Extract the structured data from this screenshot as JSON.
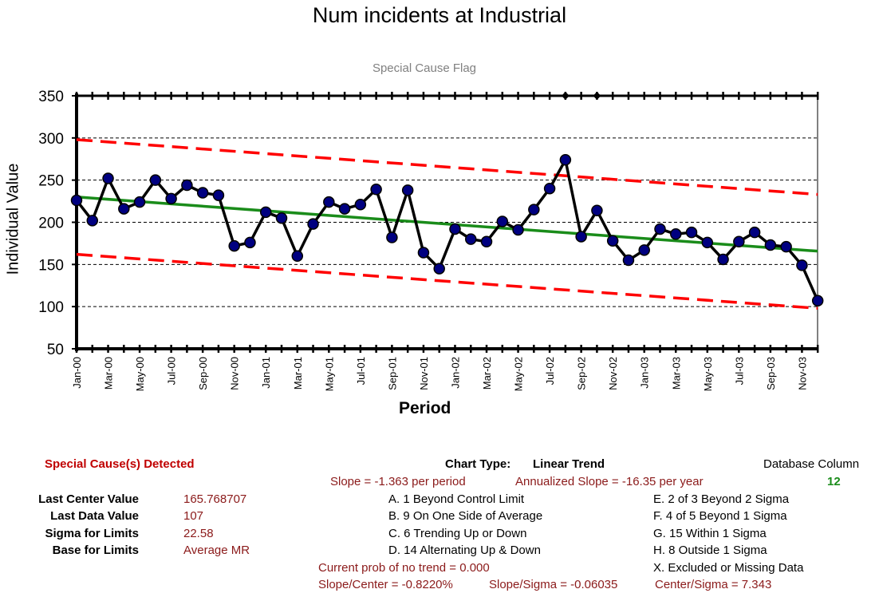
{
  "chart_data": {
    "type": "line",
    "title": "Num incidents at Industrial",
    "subtitle": "Special Cause Flag",
    "xlabel": "Period",
    "ylabel": "Individual Value",
    "ylim": [
      50,
      350
    ],
    "yticks": [
      50,
      100,
      150,
      200,
      250,
      300,
      350
    ],
    "grid": true,
    "x_tick_labels": [
      "Jan-00",
      "Mar-00",
      "May-00",
      "Jul-00",
      "Sep-00",
      "Nov-00",
      "Jan-01",
      "Mar-01",
      "May-01",
      "Jul-01",
      "Sep-01",
      "Nov-01",
      "Jan-02",
      "Mar-02",
      "May-02",
      "Jul-02",
      "Sep-02",
      "Nov-02",
      "Jan-03",
      "Mar-03",
      "May-03",
      "Jul-03",
      "Sep-03",
      "Nov-03"
    ],
    "periods": [
      "Jan-00",
      "Feb-00",
      "Mar-00",
      "Apr-00",
      "May-00",
      "Jun-00",
      "Jul-00",
      "Aug-00",
      "Sep-00",
      "Oct-00",
      "Nov-00",
      "Dec-00",
      "Jan-01",
      "Feb-01",
      "Mar-01",
      "Apr-01",
      "May-01",
      "Jun-01",
      "Jul-01",
      "Aug-01",
      "Sep-01",
      "Oct-01",
      "Nov-01",
      "Dec-01",
      "Jan-02",
      "Feb-02",
      "Mar-02",
      "Apr-02",
      "May-02",
      "Jun-02",
      "Jul-02",
      "Aug-02",
      "Sep-02",
      "Oct-02",
      "Nov-02",
      "Dec-02",
      "Jan-03",
      "Feb-03",
      "Mar-03",
      "Apr-03",
      "May-03",
      "Jun-03",
      "Jul-03",
      "Aug-03",
      "Sep-03",
      "Oct-03",
      "Nov-03",
      "Dec-03"
    ],
    "series": [
      {
        "values": [
          226,
          202,
          252,
          216,
          224,
          250,
          228,
          244,
          235,
          232,
          172,
          176,
          212,
          205,
          160,
          198,
          224,
          216,
          221,
          239,
          182,
          238,
          164,
          145,
          192,
          180,
          177,
          201,
          191,
          215,
          240,
          274,
          183,
          214,
          178,
          155,
          167,
          192,
          186,
          188,
          176,
          156,
          177,
          188,
          173,
          171,
          149,
          107
        ]
      }
    ],
    "center_line": {
      "start": 230,
      "end": 165.768707,
      "color": "#1a8c1a"
    },
    "upper_limit": {
      "start": 298,
      "end": 233,
      "color": "#ff0000"
    },
    "lower_limit": {
      "start": 162,
      "end": 98,
      "color": "#ff0000"
    },
    "special_cause_flags": [
      "Aug-02",
      "Oct-02"
    ],
    "colors": {
      "line": "#000000",
      "marker": "#000080"
    }
  },
  "info": {
    "special_cause_title": "Special Cause(s) Detected",
    "rows": [
      {
        "label": "Last Center Value",
        "value": "165.768707"
      },
      {
        "label": "Last Data Value",
        "value": "107"
      },
      {
        "label": "Sigma for Limits",
        "value": "22.58"
      },
      {
        "label": "Base for Limits",
        "value": "Average MR"
      }
    ],
    "chart_type_label": "Chart Type:",
    "chart_type_value": "Linear Trend",
    "slope": "Slope = -1.363 per period",
    "annualized_slope": "Annualized Slope = -16.35 per year",
    "database_column_label": "Database Column",
    "database_column_value": "12",
    "rules_left": [
      "A.  1 Beyond Control Limit",
      "B.  9 On One Side of Average",
      "C.  6 Trending Up or Down",
      "D.  14 Alternating  Up & Down"
    ],
    "rules_right": [
      "E.  2 of 3 Beyond 2 Sigma",
      "F.  4 of 5 Beyond 1 Sigma",
      "G.  15 Within 1 Sigma",
      "H.  8 Outside 1 Sigma",
      "X.  Excluded or Missing Data"
    ],
    "prob_no_trend": "Current prob of no trend = 0.000",
    "slope_center": "Slope/Center = -0.8220%",
    "slope_sigma": "Slope/Sigma = -0.06035",
    "center_sigma": "Center/Sigma = 7.343"
  }
}
